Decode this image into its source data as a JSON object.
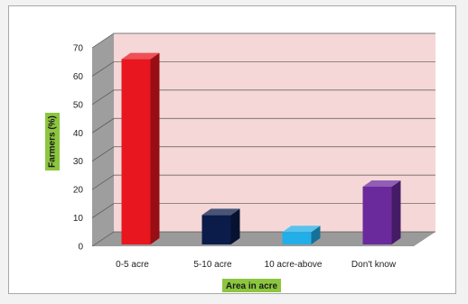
{
  "chart_data": {
    "type": "bar",
    "categories": [
      "0-5 acre",
      "5-10 acre",
      "10 acre-above",
      "Don't know"
    ],
    "values": [
      66,
      11,
      5,
      21
    ],
    "colors": [
      "#e8161e",
      "#0b1c4a",
      "#22aee8",
      "#6b2a9c"
    ],
    "xlabel": "Area in acre",
    "ylabel": "Farmers (%)",
    "ylim": [
      0,
      70
    ],
    "yticks": [
      "0",
      "10",
      "20",
      "30",
      "40",
      "50",
      "60",
      "70"
    ],
    "grid": true,
    "style": "3d",
    "wall_color": "#f5d7d7",
    "side_wall_color": "#9e9e9e",
    "floor_color": "#9a9a9a",
    "label_bg_color": "#8cc63f"
  }
}
